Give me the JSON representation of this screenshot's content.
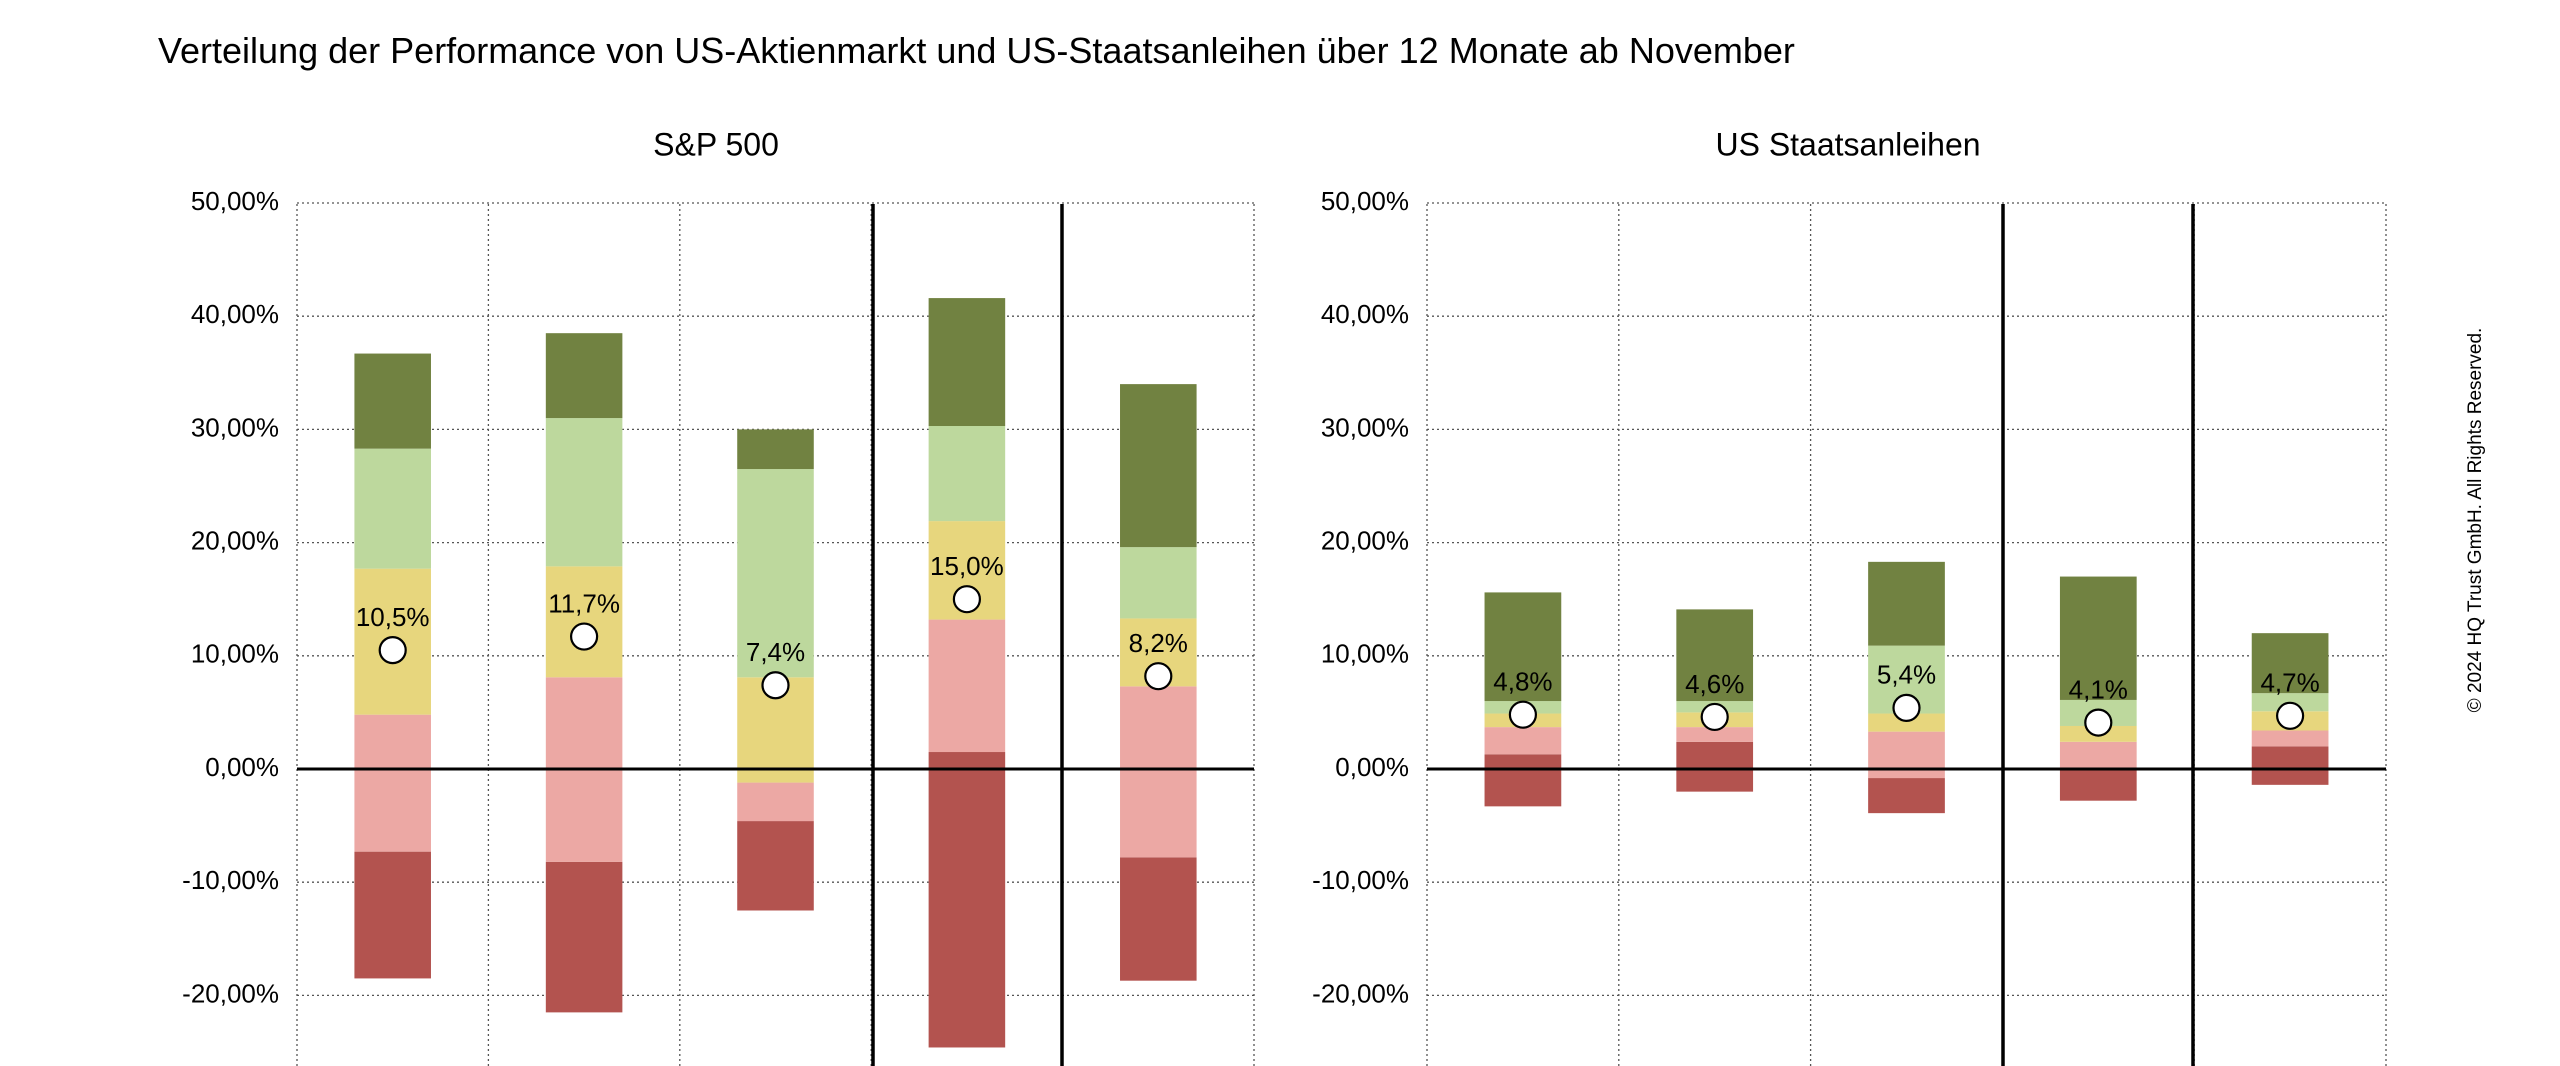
{
  "title": "Verteilung der Performance von US-Aktienmarkt und US-Staatsanleihen über 12 Monate ab November",
  "copyright": "© 2024 HQ Trust GmbH. All Rights Reserved.",
  "colors": {
    "dark_red": "#b3534f",
    "light_red": "#eca8a4",
    "yellow": "#e7d67d",
    "light_green": "#bdd89d",
    "dark_green": "#718241",
    "marker_fill": "#ffffff",
    "axis": "#000000",
    "grid": "#555555"
  },
  "chart_data": [
    {
      "type": "bar",
      "subtype": "stacked-range",
      "title": "S&P 500",
      "yticks": [
        "50,00%",
        "40,00%",
        "30,00%",
        "20,00%",
        "10,00%",
        "0,00%",
        "-10,00%",
        "-20,00%"
      ],
      "ylim": [
        -26,
        50
      ],
      "grid": true,
      "bands": [
        {
          "min": -18.5,
          "p20": -7.3,
          "p40": 4.8,
          "p60": 17.7,
          "p80": 28.3,
          "max": 36.7,
          "mean": 10.5,
          "label": "10,5%"
        },
        {
          "min": -21.5,
          "p20": -8.2,
          "p40": 8.1,
          "p60": 17.9,
          "p80": 31.0,
          "max": 38.5,
          "mean": 11.7,
          "label": "11,7%"
        },
        {
          "min": -12.5,
          "p20": -4.6,
          "p40": -1.2,
          "p60": 8.1,
          "p80": 26.5,
          "max": 30.0,
          "mean": 7.4,
          "label": "7,4%"
        },
        {
          "min": -24.6,
          "p40": 1.5,
          "p60": 13.2,
          "p80": 21.9,
          "p90": 30.3,
          "max": 41.6,
          "mean": 15.0,
          "label": "15,0%"
        },
        {
          "min": -18.7,
          "p20": -7.8,
          "p40": 7.3,
          "p60": 13.3,
          "p80": 19.6,
          "max": 34.0,
          "mean": 8.2,
          "label": "8,2%"
        }
      ]
    },
    {
      "type": "bar",
      "subtype": "stacked-range",
      "title": "US Staatsanleihen",
      "yticks": [
        "50,00%",
        "40,00%",
        "30,00%",
        "20,00%",
        "10,00%",
        "0,00%",
        "-10,00%",
        "-20,00%"
      ],
      "ylim": [
        -26,
        50
      ],
      "grid": true,
      "bands": [
        {
          "min": -3.3,
          "p20": 1.3,
          "p40": 3.7,
          "p60": 4.9,
          "p80": 6.0,
          "max": 15.6,
          "mean": 4.8,
          "label": "4,8%"
        },
        {
          "min": -2.0,
          "p20": 2.4,
          "p40": 3.7,
          "p60": 5.0,
          "p80": 6.0,
          "max": 14.1,
          "mean": 4.6,
          "label": "4,6%"
        },
        {
          "min": -3.9,
          "p20": -0.8,
          "p40": 3.3,
          "p60": 4.9,
          "p80": 10.9,
          "max": 18.3,
          "mean": 5.4,
          "label": "5,4%"
        },
        {
          "min": -2.8,
          "p20": 0.1,
          "p40": 2.4,
          "p60": 3.8,
          "p80": 6.1,
          "max": 17.0,
          "mean": 4.1,
          "label": "4,1%"
        },
        {
          "min": -1.4,
          "p20": 2.0,
          "p40": 3.4,
          "p60": 5.1,
          "p80": 6.7,
          "max": 12.0,
          "mean": 4.7,
          "label": "4,7%"
        }
      ]
    }
  ]
}
